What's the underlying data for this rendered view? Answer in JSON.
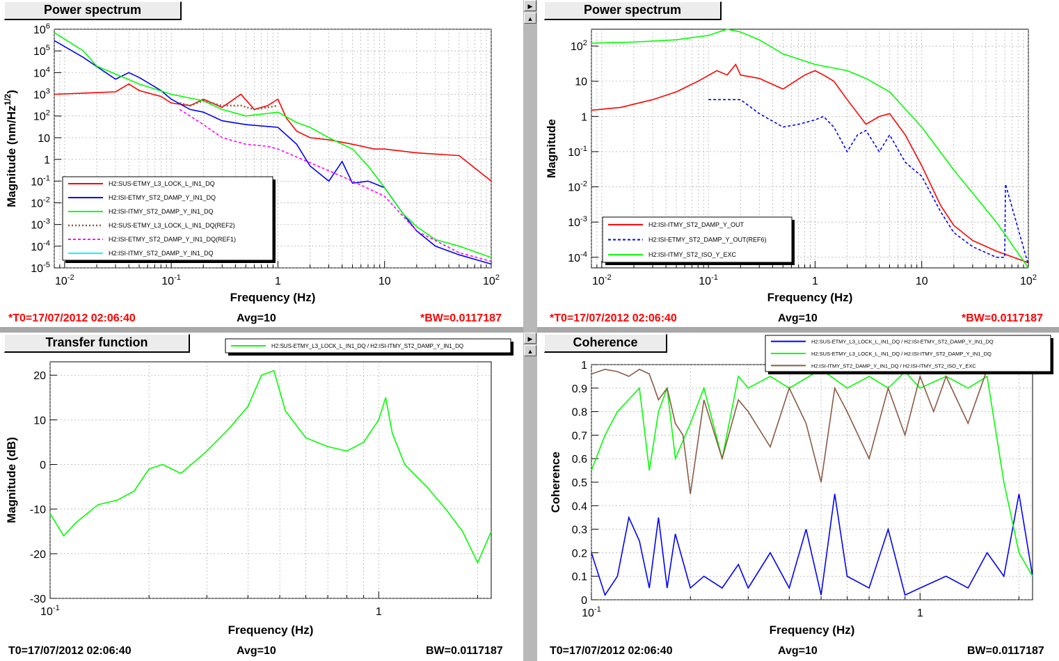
{
  "colors": {
    "red": "#ff0000",
    "blue": "#0000ff",
    "green": "#00ff00",
    "brown": "#8b5a44",
    "magenta": "#ff00ff",
    "cyan": "#00ffff",
    "dotted_brown": "#8b5a44"
  },
  "panels": [
    {
      "title": "Power spectrum",
      "ylabel": "Magnitude (nm/Hz1/2)",
      "xlabel": "Frequency (Hz)",
      "footer": {
        "t0": "*T0=17/07/2012 02:06:40",
        "avg": "Avg=10",
        "bw": "*BW=0.0117187"
      }
    },
    {
      "title": "Power spectrum",
      "ylabel": "Magnitude",
      "xlabel": "Frequency (Hz)",
      "footer": {
        "t0": "*T0=17/07/2012 02:06:40",
        "avg": "Avg=10",
        "bw": "*BW=0.0117187"
      }
    },
    {
      "title": "Transfer function",
      "ylabel": "Magnitude (dB)",
      "xlabel": "Frequency (Hz)",
      "footer": {
        "t0": "T0=17/07/2012 02:06:40",
        "avg": "Avg=10",
        "bw": "BW=0.0117187"
      }
    },
    {
      "title": "Coherence",
      "ylabel": "Coherence",
      "xlabel": "Frequency (Hz)",
      "footer": {
        "t0": "T0=17/07/2012 02:06:40",
        "avg": "Avg=10",
        "bw": "BW=0.0117187"
      }
    }
  ],
  "chart_data": [
    {
      "type": "line",
      "title": "Power spectrum",
      "xlabel": "Frequency (Hz)",
      "ylabel": "Magnitude (nm/Hz1/2)",
      "xscale": "log",
      "yscale": "log",
      "xlim": [
        0.008,
        100
      ],
      "ylim": [
        1e-05,
        1000000
      ],
      "grid": true,
      "legend": "bottom-left",
      "xticks": [
        "10-2",
        "10-1",
        "1",
        "10",
        "102"
      ],
      "yticks": [
        "10-5",
        "10-4",
        "10-3",
        "10-2",
        "10-1",
        "1",
        "10",
        "102",
        "103",
        "104",
        "105",
        "106"
      ],
      "series": [
        {
          "name": "H2:SUS-ETMY_L3_LOCK_L_IN1_DQ",
          "color": "#ff0000",
          "style": "solid",
          "x": [
            0.008,
            0.02,
            0.03,
            0.04,
            0.05,
            0.08,
            0.1,
            0.15,
            0.2,
            0.3,
            0.45,
            0.6,
            0.8,
            1,
            1.2,
            1.5,
            2,
            3,
            5,
            8,
            10,
            20,
            50,
            100
          ],
          "y": [
            1000,
            1200,
            1300,
            3000,
            1500,
            800,
            400,
            300,
            600,
            250,
            1000,
            200,
            300,
            600,
            80,
            20,
            10,
            8,
            5,
            3,
            3,
            2,
            1.5,
            0.1
          ]
        },
        {
          "name": "H2:ISI-ETMY_ST2_DAMP_Y_IN1_DQ",
          "color": "#0000ff",
          "style": "solid",
          "x": [
            0.008,
            0.015,
            0.03,
            0.04,
            0.05,
            0.08,
            0.1,
            0.15,
            0.2,
            0.3,
            0.5,
            1,
            1.5,
            2,
            3,
            4,
            5,
            7,
            10,
            15,
            20,
            30,
            50,
            100
          ],
          "y": [
            300000,
            50000,
            5000,
            10000,
            6000,
            1500,
            600,
            200,
            150,
            60,
            40,
            30,
            5,
            0.5,
            0.1,
            0.8,
            0.08,
            0.1,
            0.05,
            0.003,
            0.0005,
            0.0001,
            4e-05,
            1.5e-05
          ]
        },
        {
          "name": "H2:ISI-ITMY_ST2_DAMP_Y_IN1_DQ",
          "color": "#00ff00",
          "style": "solid",
          "x": [
            0.008,
            0.015,
            0.02,
            0.05,
            0.1,
            0.2,
            0.3,
            0.5,
            1,
            1.5,
            2,
            3,
            4,
            5,
            7,
            10,
            15,
            20,
            30,
            50,
            100
          ],
          "y": [
            700000,
            100000,
            20000,
            3000,
            1000,
            500,
            200,
            100,
            150,
            50,
            30,
            10,
            5,
            3,
            0.5,
            0.05,
            0.003,
            0.0008,
            0.0002,
            0.0001,
            3e-05
          ]
        },
        {
          "name": "H2:SUS-ETMY_L3_LOCK_L_IN1_DQ(REF2)",
          "color": "#8b5a44",
          "style": "dotted",
          "x": [
            0.12,
            0.15,
            0.2,
            0.3,
            0.45,
            0.6,
            0.8,
            1
          ],
          "y": [
            400,
            300,
            500,
            300,
            300,
            200,
            250,
            300
          ]
        },
        {
          "name": "H2:ISI-ETMY_ST2_DAMP_Y_IN1_DQ(REF1)",
          "color": "#ff00ff",
          "style": "dashed",
          "x": [
            0.12,
            0.15,
            0.2,
            0.3,
            0.5,
            0.8,
            1,
            3,
            5,
            10,
            20,
            50,
            100
          ],
          "y": [
            200,
            100,
            40,
            10,
            5,
            4,
            3,
            0.3,
            0.1,
            0.02,
            0.0005,
            5e-05,
            2e-05
          ]
        },
        {
          "name": "H2:ISI-ITMY_ST2_DAMP_Y_IN1_DQ",
          "color": "#00ffff",
          "style": "solid",
          "x": [],
          "y": []
        }
      ]
    },
    {
      "type": "line",
      "title": "Power spectrum",
      "xlabel": "Frequency (Hz)",
      "ylabel": "Magnitude",
      "xscale": "log",
      "yscale": "log",
      "xlim": [
        0.008,
        100
      ],
      "ylim": [
        5e-05,
        300
      ],
      "grid": true,
      "legend": "bottom-left",
      "xticks": [
        "10-2",
        "10-1",
        "1",
        "10",
        "102"
      ],
      "yticks": [
        "10-4",
        "10-3",
        "10-2",
        "10-1",
        "1",
        "10",
        "102"
      ],
      "series": [
        {
          "name": "H2:ISI-ITMY_ST2_DAMP_Y_OUT",
          "color": "#ff0000",
          "style": "solid",
          "x": [
            0.008,
            0.015,
            0.03,
            0.05,
            0.08,
            0.12,
            0.15,
            0.18,
            0.2,
            0.3,
            0.5,
            0.8,
            1,
            1.2,
            1.5,
            2,
            3,
            4,
            5,
            7,
            10,
            15,
            20,
            30,
            50,
            100
          ],
          "y": [
            1.5,
            1.8,
            3,
            5,
            10,
            20,
            15,
            30,
            15,
            12,
            6,
            15,
            20,
            15,
            10,
            3,
            0.6,
            1,
            1.2,
            0.3,
            0.04,
            0.003,
            0.0008,
            0.0003,
            0.00015,
            7e-05
          ]
        },
        {
          "name": "H2:ISI-ETMY_ST2_DAMP_Y_OUT(REF6)",
          "color": "#0000ff",
          "style": "dashed",
          "x": [
            0.1,
            0.2,
            0.3,
            0.5,
            0.7,
            1,
            1.2,
            1.5,
            2,
            2.5,
            3,
            4,
            5,
            7,
            10,
            15,
            20,
            30,
            50,
            60,
            61,
            100
          ],
          "y": [
            3,
            3,
            1.2,
            0.5,
            0.6,
            0.8,
            1,
            0.5,
            0.1,
            0.3,
            0.4,
            0.1,
            0.3,
            0.05,
            0.02,
            0.002,
            0.0005,
            0.0002,
            0.0001,
            0.0001,
            0.012,
            6e-05
          ]
        },
        {
          "name": "H2:ISI-ITMY_ST2_ISO_Y_EXC",
          "color": "#00ff00",
          "style": "solid",
          "x": [
            0.008,
            0.02,
            0.05,
            0.1,
            0.15,
            0.2,
            0.3,
            0.5,
            1,
            2,
            3,
            5,
            10,
            20,
            50,
            100
          ],
          "y": [
            120,
            130,
            150,
            200,
            300,
            250,
            150,
            60,
            30,
            20,
            12,
            5,
            0.5,
            0.03,
            0.001,
            5e-05
          ]
        }
      ]
    },
    {
      "type": "line",
      "title": "Transfer function",
      "xlabel": "Frequency (Hz)",
      "ylabel": "Magnitude (dB)",
      "xscale": "log",
      "yscale": "linear",
      "xlim": [
        0.1,
        2.2
      ],
      "ylim": [
        -30,
        23
      ],
      "grid": true,
      "legend": "top",
      "xticks": [
        "10-1",
        "1"
      ],
      "yticks": [
        "-30",
        "-20",
        "-10",
        "0",
        "10",
        "20"
      ],
      "series": [
        {
          "name": "H2:SUS-ETMY_L3_LOCK_L_IN1_DQ / H2:ISI-ITMY_ST2_DAMP_Y_IN1_DQ",
          "color": "#00ff00",
          "style": "solid",
          "x": [
            0.1,
            0.11,
            0.12,
            0.14,
            0.16,
            0.18,
            0.2,
            0.22,
            0.25,
            0.3,
            0.35,
            0.4,
            0.44,
            0.48,
            0.52,
            0.6,
            0.7,
            0.8,
            0.9,
            1.0,
            1.05,
            1.1,
            1.2,
            1.4,
            1.6,
            1.8,
            2.0,
            2.2
          ],
          "y": [
            -11,
            -16,
            -13,
            -9,
            -8,
            -6,
            -1,
            0,
            -2,
            3,
            8,
            13,
            20,
            21,
            12,
            6,
            4,
            3,
            5,
            10,
            15,
            7,
            0,
            -5,
            -10,
            -15,
            -22,
            -15
          ]
        }
      ]
    },
    {
      "type": "line",
      "title": "Coherence",
      "xlabel": "Frequency (Hz)",
      "ylabel": "Coherence",
      "xscale": "log",
      "yscale": "linear",
      "xlim": [
        0.1,
        2.2
      ],
      "ylim": [
        0,
        1
      ],
      "grid": true,
      "legend": "top-right",
      "xticks": [
        "10-1",
        "1"
      ],
      "yticks": [
        "0",
        "0.1",
        "0.2",
        "0.3",
        "0.4",
        "0.5",
        "0.6",
        "0.7",
        "0.8",
        "0.9",
        "1"
      ],
      "series": [
        {
          "name": "H2:SUS-ETMY_L3_LOCK_L_IN1_DQ / H2:ISI-ETMY_ST2_DAMP_Y_IN1_DQ",
          "color": "#0000ff",
          "style": "solid",
          "x": [
            0.1,
            0.11,
            0.12,
            0.13,
            0.14,
            0.15,
            0.16,
            0.17,
            0.18,
            0.2,
            0.22,
            0.25,
            0.28,
            0.3,
            0.35,
            0.4,
            0.45,
            0.5,
            0.55,
            0.6,
            0.7,
            0.8,
            0.9,
            1.0,
            1.2,
            1.4,
            1.6,
            1.8,
            2.0,
            2.2
          ],
          "y": [
            0.2,
            0.02,
            0.1,
            0.35,
            0.25,
            0.05,
            0.35,
            0.05,
            0.28,
            0.05,
            0.1,
            0.05,
            0.15,
            0.05,
            0.2,
            0.05,
            0.3,
            0.02,
            0.45,
            0.1,
            0.05,
            0.3,
            0.02,
            0.05,
            0.1,
            0.05,
            0.2,
            0.1,
            0.45,
            0.1
          ]
        },
        {
          "name": "H2:SUS-ETMY_L3_LOCK_L_IN1_DQ / H2:ISI-ITMY_ST2_DAMP_Y_IN1_DQ",
          "color": "#00ff00",
          "style": "solid",
          "x": [
            0.1,
            0.11,
            0.12,
            0.14,
            0.15,
            0.16,
            0.17,
            0.18,
            0.2,
            0.22,
            0.25,
            0.28,
            0.3,
            0.35,
            0.4,
            0.5,
            0.6,
            0.7,
            0.8,
            0.9,
            1.0,
            1.2,
            1.4,
            1.6,
            1.8,
            2.0,
            2.2
          ],
          "y": [
            0.55,
            0.7,
            0.8,
            0.9,
            0.55,
            0.8,
            0.9,
            0.6,
            0.75,
            0.9,
            0.6,
            0.95,
            0.9,
            0.95,
            0.9,
            0.98,
            0.9,
            0.95,
            0.9,
            0.97,
            0.9,
            0.95,
            0.9,
            0.95,
            0.5,
            0.2,
            0.1
          ]
        },
        {
          "name": "H2:ISI-ITMY_ST2_DAMP_Y_IN1_DQ / H2:ISI-ITMY_ST2_ISO_Y_EXC",
          "color": "#8b5a44",
          "style": "solid",
          "x": [
            0.1,
            0.11,
            0.12,
            0.13,
            0.14,
            0.15,
            0.16,
            0.17,
            0.18,
            0.19,
            0.2,
            0.22,
            0.25,
            0.28,
            0.3,
            0.35,
            0.4,
            0.45,
            0.5,
            0.55,
            0.6,
            0.7,
            0.8,
            0.9,
            1.0,
            1.1,
            1.2,
            1.4,
            1.6
          ],
          "y": [
            0.96,
            0.98,
            0.97,
            0.95,
            0.98,
            0.96,
            0.85,
            0.9,
            0.75,
            0.7,
            0.45,
            0.85,
            0.6,
            0.85,
            0.8,
            0.65,
            0.9,
            0.75,
            0.5,
            0.9,
            0.8,
            0.6,
            0.9,
            0.7,
            0.95,
            0.8,
            0.95,
            0.75,
            0.98
          ]
        }
      ]
    }
  ]
}
